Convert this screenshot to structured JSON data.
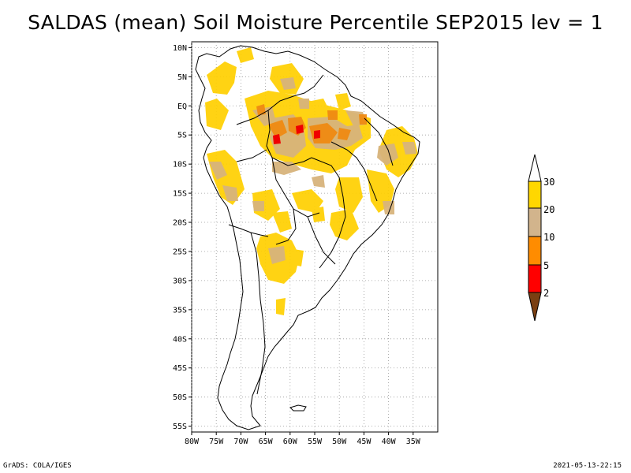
{
  "title": "SALDAS (mean) Soil Moisture Percentile SEP2015 lev = 1",
  "footer": {
    "left": "GrADS: COLA/IGES",
    "right": "2021-05-13-22:15"
  },
  "map": {
    "lon_range": [
      -80,
      -30
    ],
    "lat_range": [
      -56,
      11
    ],
    "lat_ticks": [
      "10N",
      "5N",
      "EQ",
      "5S",
      "10S",
      "15S",
      "20S",
      "25S",
      "30S",
      "35S",
      "40S",
      "45S",
      "50S",
      "55S"
    ],
    "lon_ticks": [
      "80W",
      "75W",
      "70W",
      "65W",
      "60W",
      "55W",
      "50W",
      "45W",
      "40W",
      "35W"
    ]
  },
  "colorbar": {
    "levels": [
      "2",
      "5",
      "10",
      "20",
      "30"
    ],
    "colors": {
      "below_2": "#7a3f12",
      "2_5": "#ff0000",
      "5_10": "#ff8c00",
      "10_20": "#d2b48c",
      "20_30": "#ffd700",
      "above_30": "#ffffff"
    }
  },
  "data_colors": {
    "yellow": "#ffd000",
    "tan": "#d8b47c",
    "orange": "#f08a12",
    "red": "#f00000"
  }
}
